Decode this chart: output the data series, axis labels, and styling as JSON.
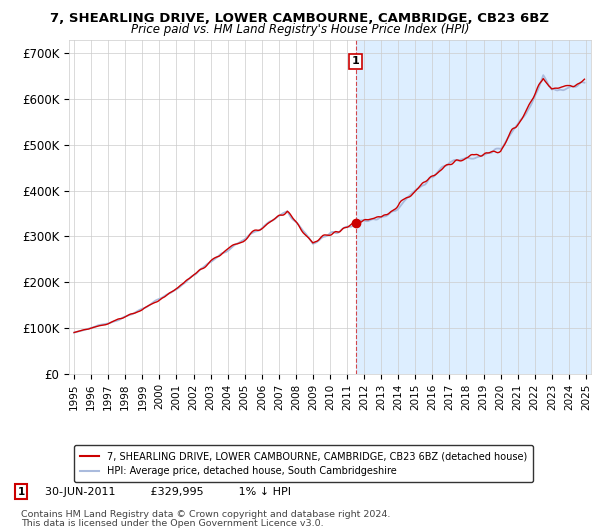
{
  "title": "7, SHEARLING DRIVE, LOWER CAMBOURNE, CAMBRIDGE, CB23 6BZ",
  "subtitle": "Price paid vs. HM Land Registry's House Price Index (HPI)",
  "ylabel_ticks": [
    "£0",
    "£100K",
    "£200K",
    "£300K",
    "£400K",
    "£500K",
    "£600K",
    "£700K"
  ],
  "ytick_values": [
    0,
    100000,
    200000,
    300000,
    400000,
    500000,
    600000,
    700000
  ],
  "ylim": [
    0,
    730000
  ],
  "xlim_start": 1994.7,
  "xlim_end": 2025.3,
  "hpi_color": "#aabbdd",
  "price_color": "#cc0000",
  "annotation_date": "30-JUN-2011",
  "annotation_price": "£329,995",
  "annotation_hpi": "1% ↓ HPI",
  "sale_date_x": 2011.5,
  "sale_price_y": 329995,
  "legend_label_price": "7, SHEARLING DRIVE, LOWER CAMBOURNE, CAMBRIDGE, CB23 6BZ (detached house)",
  "legend_label_hpi": "HPI: Average price, detached house, South Cambridgeshire",
  "footnote1": "Contains HM Land Registry data © Crown copyright and database right 2024.",
  "footnote2": "This data is licensed under the Open Government Licence v3.0.",
  "background_color": "#ffffff",
  "background_after_color": "#ddeeff",
  "grid_color": "#cccccc",
  "vline_color": "#cc0000"
}
